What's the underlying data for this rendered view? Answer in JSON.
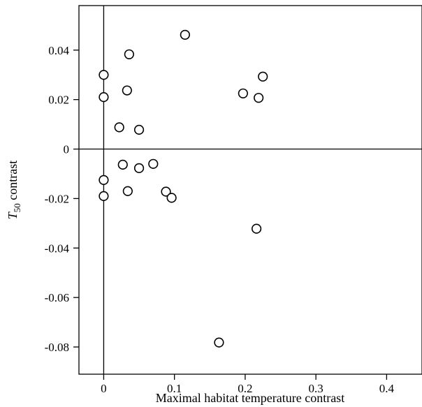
{
  "chart_data": {
    "type": "scatter",
    "xlabel": "Maximal habitat temperature contrast",
    "ylabel": {
      "main": "T",
      "sub": "50",
      "rest": " contrast"
    },
    "xlim": [
      -0.035,
      0.45
    ],
    "ylim": [
      -0.091,
      0.058
    ],
    "x_ticks": [
      {
        "value": 0,
        "label": "0"
      },
      {
        "value": 0.1,
        "label": "0.1"
      },
      {
        "value": 0.2,
        "label": "0.2"
      },
      {
        "value": 0.3,
        "label": "0.3"
      },
      {
        "value": 0.4,
        "label": "0.4"
      }
    ],
    "y_ticks": [
      {
        "value": 0.04,
        "label": "0.04"
      },
      {
        "value": 0.02,
        "label": "0.02"
      },
      {
        "value": 0,
        "label": "0"
      },
      {
        "value": -0.02,
        "label": "-0.02"
      },
      {
        "value": -0.04,
        "label": "-0.04"
      },
      {
        "value": -0.06,
        "label": "-0.06"
      },
      {
        "value": -0.08,
        "label": "-0.08"
      }
    ],
    "reference_lines": {
      "x": 0,
      "y": 0
    },
    "grid": false,
    "points": [
      {
        "x": 0.0,
        "y": 0.03
      },
      {
        "x": 0.0,
        "y": 0.021
      },
      {
        "x": 0.0,
        "y": -0.0125
      },
      {
        "x": 0.0,
        "y": -0.019
      },
      {
        "x": 0.022,
        "y": 0.0088
      },
      {
        "x": 0.027,
        "y": -0.0063
      },
      {
        "x": 0.033,
        "y": 0.0237
      },
      {
        "x": 0.034,
        "y": -0.017
      },
      {
        "x": 0.036,
        "y": 0.0383
      },
      {
        "x": 0.05,
        "y": 0.0078
      },
      {
        "x": 0.05,
        "y": -0.0077
      },
      {
        "x": 0.07,
        "y": -0.006
      },
      {
        "x": 0.088,
        "y": -0.0172
      },
      {
        "x": 0.096,
        "y": -0.0197
      },
      {
        "x": 0.115,
        "y": 0.0462
      },
      {
        "x": 0.163,
        "y": -0.0782
      },
      {
        "x": 0.197,
        "y": 0.0225
      },
      {
        "x": 0.216,
        "y": -0.0322
      },
      {
        "x": 0.219,
        "y": 0.0207
      },
      {
        "x": 0.225,
        "y": 0.0293
      }
    ]
  }
}
